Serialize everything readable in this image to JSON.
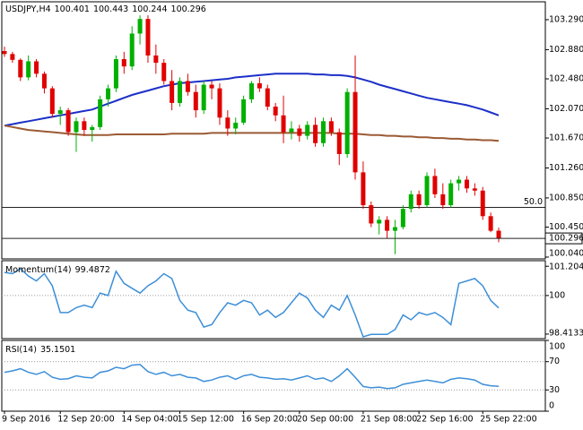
{
  "chart_data": [
    {
      "type": "candlestick",
      "title": "USDJPY,H4",
      "categories": [
        "9 Sep 2016",
        null,
        null,
        null,
        null,
        null,
        null,
        "12 Sep 20:00",
        null,
        null,
        null,
        null,
        null,
        null,
        null,
        "14 Sep 04:00",
        null,
        null,
        null,
        null,
        null,
        null,
        "15 Sep 12:00",
        null,
        null,
        null,
        null,
        null,
        null,
        null,
        "16 Sep 20:00",
        null,
        null,
        null,
        null,
        null,
        null,
        "20 Sep 00:00",
        null,
        null,
        null,
        null,
        null,
        null,
        null,
        "21 Sep 08:00",
        null,
        null,
        null,
        null,
        null,
        null,
        "22 Sep 16:00",
        null,
        null,
        null,
        null,
        null,
        null,
        null,
        "25 Sep 22:00",
        null,
        null
      ],
      "open": [
        102.86,
        102.82,
        102.74,
        102.5,
        102.72,
        102.55,
        102.35,
        102.0,
        102.05,
        101.75,
        101.9,
        101.78,
        101.82,
        102.2,
        102.35,
        102.75,
        102.65,
        103.1,
        103.3,
        102.8,
        102.7,
        102.45,
        102.15,
        102.45,
        102.3,
        102.05,
        102.4,
        102.35,
        101.95,
        101.8,
        101.88,
        102.2,
        102.42,
        102.35,
        102.1,
        101.98,
        101.75,
        101.8,
        101.7,
        101.85,
        101.6,
        101.9,
        101.75,
        101.45,
        102.3,
        101.2,
        100.75,
        100.5,
        100.55,
        100.4,
        100.45,
        100.7,
        100.9,
        100.75,
        101.15,
        100.9,
        100.75,
        101.05,
        101.1,
        100.98,
        100.95,
        100.6,
        100.401
      ],
      "high": [
        102.92,
        102.85,
        102.76,
        102.8,
        102.75,
        102.58,
        102.38,
        102.1,
        102.08,
        101.95,
        101.95,
        101.85,
        102.25,
        102.4,
        102.8,
        102.85,
        103.2,
        103.35,
        103.35,
        102.95,
        102.75,
        102.6,
        102.5,
        102.55,
        102.4,
        102.45,
        102.45,
        102.42,
        102.05,
        101.95,
        102.25,
        102.45,
        102.5,
        102.4,
        102.15,
        102.25,
        101.9,
        101.85,
        101.9,
        101.95,
        101.95,
        101.95,
        101.8,
        102.35,
        102.8,
        101.35,
        100.8,
        100.6,
        100.6,
        100.55,
        100.75,
        100.95,
        100.95,
        101.2,
        101.25,
        101.05,
        101.1,
        101.15,
        101.15,
        101.05,
        101.0,
        100.65,
        100.443
      ],
      "low": [
        102.78,
        102.7,
        102.45,
        102.46,
        102.5,
        102.28,
        101.95,
        101.85,
        101.7,
        101.48,
        101.7,
        101.62,
        101.78,
        102.1,
        102.3,
        102.55,
        102.6,
        102.95,
        102.7,
        102.55,
        102.4,
        102.05,
        102.1,
        102.25,
        101.95,
        102.0,
        102.2,
        101.85,
        101.7,
        101.72,
        101.85,
        102.15,
        102.3,
        102.05,
        101.9,
        101.6,
        101.65,
        101.62,
        101.65,
        101.55,
        101.55,
        101.7,
        101.3,
        101.4,
        101.1,
        100.7,
        100.45,
        100.35,
        100.3,
        100.08,
        100.42,
        100.65,
        100.7,
        100.72,
        100.85,
        100.7,
        100.72,
        100.95,
        100.92,
        100.88,
        100.55,
        100.38,
        100.244
      ],
      "close": [
        102.82,
        102.74,
        102.5,
        102.72,
        102.55,
        102.35,
        102.0,
        102.05,
        101.75,
        101.9,
        101.78,
        101.82,
        102.2,
        102.35,
        102.75,
        102.65,
        103.1,
        103.3,
        102.8,
        102.7,
        102.45,
        102.15,
        102.45,
        102.3,
        102.05,
        102.4,
        102.35,
        101.95,
        101.8,
        101.88,
        102.2,
        102.42,
        102.35,
        102.1,
        101.98,
        101.75,
        101.8,
        101.7,
        101.85,
        101.6,
        101.9,
        101.75,
        101.45,
        102.3,
        101.2,
        100.75,
        100.5,
        100.55,
        100.4,
        100.45,
        100.7,
        100.9,
        100.75,
        101.15,
        100.9,
        100.75,
        101.05,
        101.1,
        100.98,
        100.95,
        100.6,
        100.4,
        100.296
      ],
      "up_color": "#00b000",
      "down_color": "#e00000",
      "series": [
        {
          "color": "#1c2fc8",
          "values": [
            101.84,
            101.86,
            101.88,
            101.9,
            101.92,
            101.94,
            101.96,
            101.98,
            102.0,
            102.02,
            102.04,
            102.06,
            102.1,
            102.14,
            102.18,
            102.22,
            102.26,
            102.29,
            102.32,
            102.35,
            102.38,
            102.4,
            102.42,
            102.43,
            102.44,
            102.45,
            102.46,
            102.47,
            102.48,
            102.5,
            102.51,
            102.52,
            102.53,
            102.54,
            102.55,
            102.55,
            102.55,
            102.55,
            102.55,
            102.54,
            102.54,
            102.53,
            102.53,
            102.52,
            102.5,
            102.47,
            102.44,
            102.4,
            102.37,
            102.34,
            102.31,
            102.28,
            102.25,
            102.22,
            102.2,
            102.18,
            102.16,
            102.14,
            102.12,
            102.09,
            102.06,
            102.02,
            101.98
          ]
        },
        {
          "color": "#9b5a34",
          "values": [
            101.84,
            101.82,
            101.8,
            101.78,
            101.77,
            101.76,
            101.75,
            101.74,
            101.73,
            101.72,
            101.71,
            101.71,
            101.71,
            101.71,
            101.72,
            101.72,
            101.72,
            101.72,
            101.72,
            101.72,
            101.72,
            101.73,
            101.73,
            101.73,
            101.73,
            101.73,
            101.74,
            101.74,
            101.74,
            101.74,
            101.74,
            101.74,
            101.74,
            101.74,
            101.74,
            101.74,
            101.74,
            101.74,
            101.74,
            101.74,
            101.74,
            101.74,
            101.73,
            101.73,
            101.73,
            101.72,
            101.71,
            101.71,
            101.7,
            101.7,
            101.69,
            101.69,
            101.68,
            101.68,
            101.67,
            101.67,
            101.66,
            101.66,
            101.65,
            101.65,
            101.64,
            101.64,
            101.63
          ]
        }
      ],
      "fib_level": {
        "value": 100.72,
        "label": "50.0"
      },
      "ylim": [
        100.015,
        103.535
      ],
      "yticks": [
        {
          "value": 103.29,
          "label": "103.290"
        },
        {
          "value": 102.88,
          "label": "102.880"
        },
        {
          "value": 102.48,
          "label": "102.480"
        },
        {
          "value": 102.07,
          "label": "102.070"
        },
        {
          "value": 101.67,
          "label": "101.670"
        },
        {
          "value": 101.26,
          "label": "101.260"
        },
        {
          "value": 100.85,
          "label": "100.850"
        },
        {
          "value": 100.45,
          "label": "100.450"
        },
        {
          "value": 100.04,
          "label": "100.040"
        }
      ]
    },
    {
      "type": "line",
      "series": [
        {
          "name": "Momentum(14)",
          "color": "#3d8fd8",
          "values": [
            100.95,
            100.9,
            101.1,
            100.8,
            100.6,
            100.9,
            100.4,
            99.3,
            99.3,
            99.5,
            99.6,
            99.5,
            100.1,
            100.0,
            101.0,
            100.5,
            100.3,
            100.1,
            100.4,
            100.6,
            100.9,
            100.7,
            99.8,
            99.4,
            99.3,
            98.7,
            98.8,
            99.3,
            99.7,
            99.6,
            99.8,
            99.7,
            99.2,
            99.4,
            99.1,
            99.3,
            99.7,
            100.1,
            99.9,
            99.4,
            99.1,
            99.6,
            99.4,
            100.0,
            99.2,
            98.3,
            98.4,
            98.4,
            98.4,
            98.6,
            99.2,
            99.0,
            99.3,
            99.2,
            99.3,
            99.1,
            98.8,
            100.5,
            100.6,
            100.7,
            100.4,
            99.8,
            99.4872
          ]
        }
      ],
      "ylim": [
        98.226,
        101.434
      ],
      "yticks": [
        101.2047,
        100,
        98.4133
      ]
    },
    {
      "type": "line",
      "series": [
        {
          "name": "RSI(14)",
          "color": "#3d8fd8",
          "values": [
            55,
            57,
            60,
            55,
            52,
            56,
            48,
            45,
            46,
            50,
            48,
            47,
            55,
            57,
            62,
            60,
            65,
            66,
            56,
            52,
            55,
            50,
            52,
            48,
            47,
            42,
            44,
            48,
            50,
            45,
            50,
            52,
            48,
            47,
            45,
            46,
            44,
            47,
            50,
            45,
            47,
            42,
            50,
            60,
            48,
            35,
            33,
            34,
            32,
            33,
            38,
            40,
            42,
            44,
            42,
            40,
            45,
            47,
            46,
            44,
            38,
            36,
            35.1501
          ]
        }
      ],
      "ylim": [
        0,
        100
      ],
      "yticks": [
        100,
        70,
        30,
        0
      ]
    }
  ]
}
